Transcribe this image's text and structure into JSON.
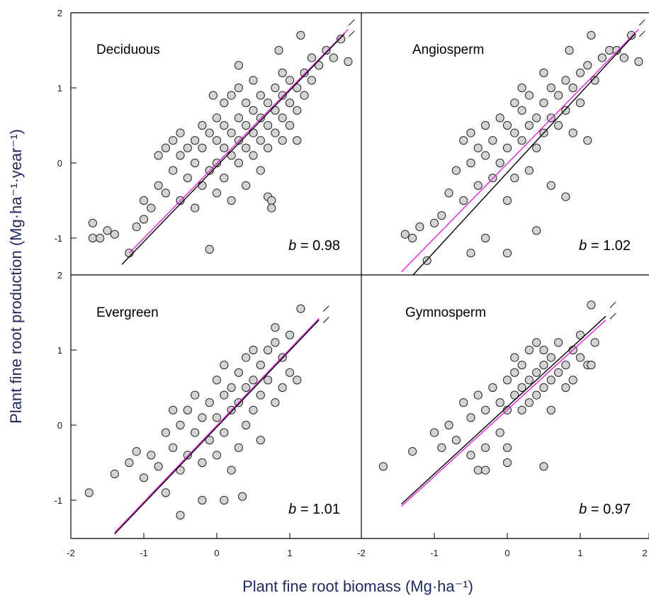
{
  "chart_data": {
    "type": "scatter",
    "xlabel": "Plant fine root biomass (Mg·ha⁻¹)",
    "ylabel": "Plant fine root production (Mg·ha⁻¹·year⁻¹)",
    "xlim": [
      -2,
      2
    ],
    "ylim": [
      -1.5,
      2
    ],
    "x_ticks": [
      "-2",
      "-1",
      "0",
      "1",
      "-2",
      "-1",
      "0",
      "1",
      "2"
    ],
    "y_ticks": [
      "2",
      "1",
      "0",
      "-1"
    ],
    "grid": false,
    "colors": {
      "points_fill": "#d3d3d3",
      "points_stroke": "#222222",
      "fit_line": "#000000",
      "reference_line": "#e020d8"
    },
    "panels": [
      {
        "name": "Deciduous",
        "b_value": "0.98",
        "fit_line": {
          "x": [
            -1.3,
            1.75
          ],
          "y": [
            -1.35,
            1.72
          ]
        },
        "reference_line": {
          "x": [
            -1.2,
            1.8
          ],
          "y": [
            -1.2,
            1.78
          ]
        },
        "points": [
          [
            -1.7,
            -1.0
          ],
          [
            -1.7,
            -0.8
          ],
          [
            -1.6,
            -1.0
          ],
          [
            -1.5,
            -0.9
          ],
          [
            -1.4,
            -0.95
          ],
          [
            -1.2,
            -1.2
          ],
          [
            -1.1,
            -0.85
          ],
          [
            -1.0,
            -0.75
          ],
          [
            -1.0,
            -0.5
          ],
          [
            -0.9,
            -0.6
          ],
          [
            -0.8,
            -0.3
          ],
          [
            -0.8,
            0.1
          ],
          [
            -0.7,
            -0.4
          ],
          [
            -0.7,
            0.2
          ],
          [
            -0.6,
            -0.1
          ],
          [
            -0.6,
            0.3
          ],
          [
            -0.5,
            -0.5
          ],
          [
            -0.5,
            0.1
          ],
          [
            -0.5,
            0.4
          ],
          [
            -0.4,
            -0.2
          ],
          [
            -0.4,
            0.2
          ],
          [
            -0.3,
            -0.6
          ],
          [
            -0.3,
            0.0
          ],
          [
            -0.3,
            0.3
          ],
          [
            -0.2,
            -0.3
          ],
          [
            -0.2,
            0.2
          ],
          [
            -0.2,
            0.5
          ],
          [
            -0.1,
            -0.1
          ],
          [
            -0.1,
            0.4
          ],
          [
            -0.1,
            -1.15
          ],
          [
            0.0,
            0.0
          ],
          [
            0.0,
            0.3
          ],
          [
            0.0,
            0.6
          ],
          [
            0.0,
            -0.4
          ],
          [
            0.1,
            0.2
          ],
          [
            0.1,
            0.5
          ],
          [
            0.1,
            0.8
          ],
          [
            0.1,
            -0.2
          ],
          [
            0.2,
            0.1
          ],
          [
            0.2,
            0.4
          ],
          [
            0.2,
            0.9
          ],
          [
            0.2,
            -0.5
          ],
          [
            0.3,
            0.3
          ],
          [
            0.3,
            0.6
          ],
          [
            0.3,
            0.0
          ],
          [
            0.3,
            1.0
          ],
          [
            0.4,
            0.2
          ],
          [
            0.4,
            0.5
          ],
          [
            0.4,
            0.8
          ],
          [
            0.4,
            -0.3
          ],
          [
            0.5,
            0.4
          ],
          [
            0.5,
            0.7
          ],
          [
            0.5,
            1.1
          ],
          [
            0.5,
            0.1
          ],
          [
            0.6,
            0.3
          ],
          [
            0.6,
            0.6
          ],
          [
            0.6,
            0.9
          ],
          [
            0.6,
            -0.1
          ],
          [
            0.7,
            0.5
          ],
          [
            0.7,
            0.8
          ],
          [
            0.7,
            0.2
          ],
          [
            0.7,
            -0.45
          ],
          [
            0.75,
            -0.5
          ],
          [
            0.75,
            -0.6
          ],
          [
            0.8,
            0.4
          ],
          [
            0.8,
            0.7
          ],
          [
            0.8,
            1.0
          ],
          [
            0.9,
            0.6
          ],
          [
            0.9,
            0.9
          ],
          [
            0.9,
            0.3
          ],
          [
            1.0,
            0.5
          ],
          [
            1.0,
            0.8
          ],
          [
            1.0,
            1.1
          ],
          [
            1.1,
            0.7
          ],
          [
            1.1,
            1.0
          ],
          [
            1.1,
            0.3
          ],
          [
            1.2,
            0.9
          ],
          [
            1.2,
            1.2
          ],
          [
            1.3,
            1.1
          ],
          [
            1.3,
            1.4
          ],
          [
            1.4,
            1.3
          ],
          [
            1.5,
            1.5
          ],
          [
            1.6,
            1.4
          ],
          [
            1.7,
            1.65
          ],
          [
            1.8,
            1.35
          ],
          [
            1.15,
            1.7
          ],
          [
            0.85,
            1.5
          ],
          [
            0.9,
            1.2
          ],
          [
            -0.05,
            0.9
          ],
          [
            0.3,
            1.3
          ]
        ]
      },
      {
        "name": "Angiosperm",
        "b_value": "1.02",
        "fit_line": {
          "x": [
            -1.3,
            1.75
          ],
          "y": [
            -1.5,
            1.72
          ]
        },
        "reference_line": {
          "x": [
            -1.45,
            1.8
          ],
          "y": [
            -1.45,
            1.78
          ]
        },
        "points": [
          [
            -1.4,
            -0.95
          ],
          [
            -1.3,
            -1.0
          ],
          [
            -1.2,
            -0.85
          ],
          [
            -1.1,
            -1.3
          ],
          [
            -1.0,
            -0.8
          ],
          [
            -0.9,
            -0.7
          ],
          [
            -0.8,
            -0.4
          ],
          [
            -0.7,
            -0.1
          ],
          [
            -0.6,
            0.3
          ],
          [
            -0.6,
            -0.5
          ],
          [
            -0.5,
            0.0
          ],
          [
            -0.5,
            0.4
          ],
          [
            -0.4,
            -0.3
          ],
          [
            -0.4,
            0.2
          ],
          [
            -0.3,
            0.1
          ],
          [
            -0.3,
            0.5
          ],
          [
            -0.2,
            -0.2
          ],
          [
            -0.2,
            0.3
          ],
          [
            -0.1,
            0.0
          ],
          [
            -0.1,
            0.6
          ],
          [
            0.0,
            0.2
          ],
          [
            0.0,
            0.5
          ],
          [
            0.0,
            -0.5
          ],
          [
            0.1,
            0.4
          ],
          [
            0.1,
            0.8
          ],
          [
            0.1,
            -0.2
          ],
          [
            0.2,
            0.3
          ],
          [
            0.2,
            0.7
          ],
          [
            0.2,
            1.0
          ],
          [
            0.3,
            0.5
          ],
          [
            0.3,
            0.9
          ],
          [
            0.3,
            -0.1
          ],
          [
            0.4,
            0.6
          ],
          [
            0.4,
            0.2
          ],
          [
            0.4,
            -0.9
          ],
          [
            0.5,
            0.8
          ],
          [
            0.5,
            1.2
          ],
          [
            0.5,
            0.4
          ],
          [
            0.6,
            0.6
          ],
          [
            0.6,
            1.0
          ],
          [
            0.6,
            -0.3
          ],
          [
            0.7,
            0.9
          ],
          [
            0.7,
            0.5
          ],
          [
            0.8,
            1.1
          ],
          [
            0.8,
            0.7
          ],
          [
            0.8,
            -0.45
          ],
          [
            0.9,
            1.0
          ],
          [
            0.9,
            0.4
          ],
          [
            1.0,
            1.2
          ],
          [
            1.0,
            0.8
          ],
          [
            1.1,
            1.3
          ],
          [
            1.1,
            0.3
          ],
          [
            1.2,
            1.1
          ],
          [
            1.3,
            1.4
          ],
          [
            1.4,
            1.5
          ],
          [
            1.5,
            1.5
          ],
          [
            1.6,
            1.4
          ],
          [
            1.7,
            1.7
          ],
          [
            1.8,
            1.35
          ],
          [
            1.15,
            1.7
          ],
          [
            -0.5,
            -1.2
          ],
          [
            -0.3,
            -1.0
          ],
          [
            0.0,
            -1.2
          ],
          [
            0.85,
            1.5
          ]
        ]
      },
      {
        "name": "Evergreen",
        "b_value": "1.01",
        "fit_line": {
          "x": [
            -1.4,
            1.4
          ],
          "y": [
            -1.45,
            1.4
          ]
        },
        "reference_line": {
          "x": [
            -1.4,
            1.4
          ],
          "y": [
            -1.43,
            1.42
          ]
        },
        "points": [
          [
            -1.75,
            -0.9
          ],
          [
            -1.4,
            -0.65
          ],
          [
            -1.2,
            -0.5
          ],
          [
            -1.1,
            -0.35
          ],
          [
            -1.0,
            -0.7
          ],
          [
            -0.9,
            -0.4
          ],
          [
            -0.8,
            -0.55
          ],
          [
            -0.7,
            -0.1
          ],
          [
            -0.7,
            -0.9
          ],
          [
            -0.6,
            0.2
          ],
          [
            -0.6,
            -0.3
          ],
          [
            -0.5,
            0.0
          ],
          [
            -0.5,
            -0.6
          ],
          [
            -0.4,
            0.2
          ],
          [
            -0.4,
            -0.4
          ],
          [
            -0.3,
            0.4
          ],
          [
            -0.3,
            -0.1
          ],
          [
            -0.2,
            0.1
          ],
          [
            -0.2,
            -0.5
          ],
          [
            -0.1,
            0.3
          ],
          [
            -0.1,
            -0.2
          ],
          [
            0.0,
            0.6
          ],
          [
            0.0,
            0.1
          ],
          [
            0.0,
            -0.4
          ],
          [
            0.1,
            0.4
          ],
          [
            0.1,
            0.8
          ],
          [
            0.1,
            -0.1
          ],
          [
            0.2,
            0.5
          ],
          [
            0.2,
            0.2
          ],
          [
            0.2,
            -0.6
          ],
          [
            0.3,
            0.7
          ],
          [
            0.3,
            0.3
          ],
          [
            0.3,
            -0.3
          ],
          [
            0.4,
            0.9
          ],
          [
            0.4,
            0.5
          ],
          [
            0.4,
            0.0
          ],
          [
            0.5,
            0.6
          ],
          [
            0.5,
            1.0
          ],
          [
            0.5,
            0.2
          ],
          [
            0.6,
            0.8
          ],
          [
            0.6,
            0.4
          ],
          [
            0.6,
            -0.2
          ],
          [
            0.7,
            1.0
          ],
          [
            0.7,
            0.6
          ],
          [
            0.8,
            1.1
          ],
          [
            0.8,
            0.3
          ],
          [
            0.9,
            0.9
          ],
          [
            0.9,
            0.5
          ],
          [
            1.0,
            1.2
          ],
          [
            1.0,
            0.7
          ],
          [
            1.1,
            0.6
          ],
          [
            1.15,
            1.55
          ],
          [
            -0.5,
            -1.2
          ],
          [
            -0.2,
            -1.0
          ],
          [
            0.35,
            -0.95
          ],
          [
            0.1,
            -1.0
          ],
          [
            0.8,
            1.3
          ]
        ]
      },
      {
        "name": "Gymnosperm",
        "b_value": "0.97",
        "fit_line": {
          "x": [
            -1.45,
            1.35
          ],
          "y": [
            -1.05,
            1.45
          ]
        },
        "reference_line": {
          "x": [
            -1.45,
            1.35
          ],
          "y": [
            -1.08,
            1.4
          ]
        },
        "points": [
          [
            -1.7,
            -0.55
          ],
          [
            -1.3,
            -0.35
          ],
          [
            -1.0,
            -0.1
          ],
          [
            -0.9,
            -0.3
          ],
          [
            -0.8,
            0.0
          ],
          [
            -0.7,
            -0.2
          ],
          [
            -0.6,
            0.3
          ],
          [
            -0.5,
            0.1
          ],
          [
            -0.5,
            -0.4
          ],
          [
            -0.4,
            0.4
          ],
          [
            -0.3,
            0.2
          ],
          [
            -0.3,
            -0.3
          ],
          [
            -0.2,
            0.5
          ],
          [
            -0.1,
            0.3
          ],
          [
            -0.1,
            -0.1
          ],
          [
            0.0,
            0.6
          ],
          [
            0.0,
            0.2
          ],
          [
            0.0,
            -0.5
          ],
          [
            0.1,
            0.7
          ],
          [
            0.1,
            0.4
          ],
          [
            0.1,
            0.9
          ],
          [
            0.2,
            0.5
          ],
          [
            0.2,
            0.8
          ],
          [
            0.2,
            0.2
          ],
          [
            0.3,
            0.6
          ],
          [
            0.3,
            1.0
          ],
          [
            0.3,
            0.3
          ],
          [
            0.4,
            0.7
          ],
          [
            0.4,
            1.1
          ],
          [
            0.4,
            0.4
          ],
          [
            0.5,
            0.8
          ],
          [
            0.5,
            0.5
          ],
          [
            0.5,
            1.0
          ],
          [
            0.6,
            0.6
          ],
          [
            0.6,
            0.9
          ],
          [
            0.6,
            0.2
          ],
          [
            0.7,
            0.7
          ],
          [
            0.7,
            1.1
          ],
          [
            0.8,
            0.8
          ],
          [
            0.8,
            0.5
          ],
          [
            0.9,
            1.0
          ],
          [
            0.9,
            0.6
          ],
          [
            1.0,
            0.9
          ],
          [
            1.0,
            1.2
          ],
          [
            1.1,
            0.8
          ],
          [
            1.15,
            1.6
          ],
          [
            1.2,
            1.1
          ],
          [
            1.15,
            0.8
          ],
          [
            -0.4,
            -0.6
          ],
          [
            -0.3,
            -0.6
          ],
          [
            0.5,
            -0.55
          ],
          [
            0.0,
            -0.3
          ]
        ]
      }
    ]
  }
}
